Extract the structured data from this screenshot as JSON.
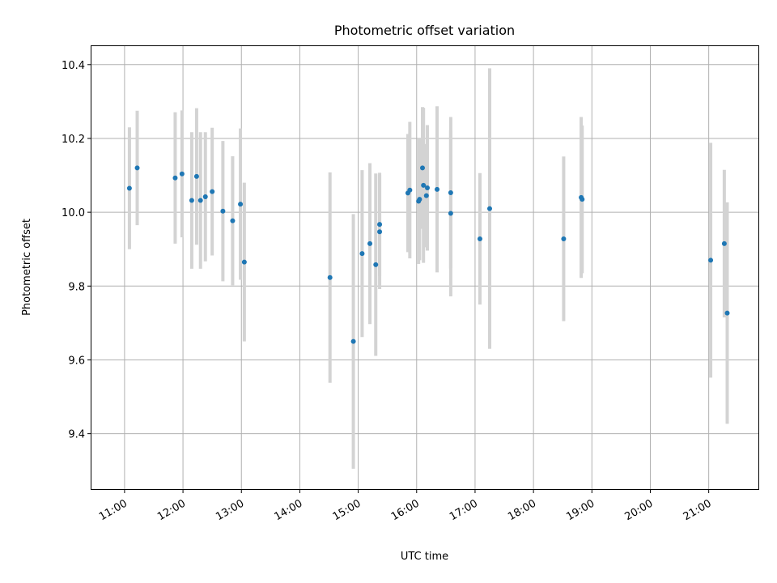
{
  "chart_data": {
    "type": "scatter",
    "title": "Photometric offset variation",
    "xlabel": "UTC time",
    "ylabel": "Photometric offset",
    "x_ticks": [
      "11:00",
      "12:00",
      "13:00",
      "14:00",
      "15:00",
      "16:00",
      "17:00",
      "18:00",
      "19:00",
      "20:00",
      "21:00"
    ],
    "y_ticks": [
      "9.4",
      "9.6",
      "9.8",
      "10.0",
      "10.2",
      "10.4"
    ],
    "xlim": [
      "10:26",
      "21:51"
    ],
    "ylim": [
      9.25,
      10.45
    ],
    "grid": true,
    "marker_color": "#1f77b4",
    "errorbar_color": "#d3d3d3",
    "points": [
      {
        "t": "11:05",
        "y": 10.065,
        "err": 0.165
      },
      {
        "t": "11:13",
        "y": 10.12,
        "err": 0.155
      },
      {
        "t": "11:52",
        "y": 10.093,
        "err": 0.178
      },
      {
        "t": "11:59",
        "y": 10.104,
        "err": 0.172
      },
      {
        "t": "12:09",
        "y": 10.032,
        "err": 0.185
      },
      {
        "t": "12:14",
        "y": 10.097,
        "err": 0.185
      },
      {
        "t": "12:18",
        "y": 10.032,
        "err": 0.185
      },
      {
        "t": "12:23",
        "y": 10.042,
        "err": 0.175
      },
      {
        "t": "12:30",
        "y": 10.056,
        "err": 0.173
      },
      {
        "t": "12:41",
        "y": 10.003,
        "err": 0.19
      },
      {
        "t": "12:51",
        "y": 9.977,
        "err": 0.175
      },
      {
        "t": "12:59",
        "y": 10.022,
        "err": 0.205
      },
      {
        "t": "13:03",
        "y": 9.865,
        "err": 0.215
      },
      {
        "t": "14:31",
        "y": 9.823,
        "err": 0.285
      },
      {
        "t": "14:55",
        "y": 9.65,
        "err": 0.345
      },
      {
        "t": "15:04",
        "y": 9.888,
        "err": 0.226
      },
      {
        "t": "15:12",
        "y": 9.915,
        "err": 0.218
      },
      {
        "t": "15:18",
        "y": 9.858,
        "err": 0.247
      },
      {
        "t": "15:22",
        "y": 9.967,
        "err": 0.14
      },
      {
        "t": "15:22",
        "y": 9.947,
        "err": 0.155
      },
      {
        "t": "15:51",
        "y": 10.052,
        "err": 0.16
      },
      {
        "t": "15:53",
        "y": 10.06,
        "err": 0.185
      },
      {
        "t": "16:02",
        "y": 10.03,
        "err": 0.17
      },
      {
        "t": "16:03",
        "y": 10.035,
        "err": 0.165
      },
      {
        "t": "16:06",
        "y": 10.12,
        "err": 0.165
      },
      {
        "t": "16:07",
        "y": 10.073,
        "err": 0.21
      },
      {
        "t": "16:10",
        "y": 10.045,
        "err": 0.14
      },
      {
        "t": "16:11",
        "y": 10.066,
        "err": 0.17
      },
      {
        "t": "16:21",
        "y": 10.062,
        "err": 0.225
      },
      {
        "t": "16:35",
        "y": 10.053,
        "err": 0.205
      },
      {
        "t": "16:35",
        "y": 9.997,
        "err": 0.225
      },
      {
        "t": "17:05",
        "y": 9.928,
        "err": 0.178
      },
      {
        "t": "17:15",
        "y": 10.01,
        "err": 0.38
      },
      {
        "t": "18:31",
        "y": 9.928,
        "err": 0.223
      },
      {
        "t": "18:49",
        "y": 10.04,
        "err": 0.218
      },
      {
        "t": "18:50",
        "y": 10.035,
        "err": 0.2
      },
      {
        "t": "21:02",
        "y": 9.87,
        "err": 0.318
      },
      {
        "t": "21:16",
        "y": 9.915,
        "err": 0.2
      },
      {
        "t": "21:19",
        "y": 9.727,
        "err": 0.3
      }
    ]
  }
}
